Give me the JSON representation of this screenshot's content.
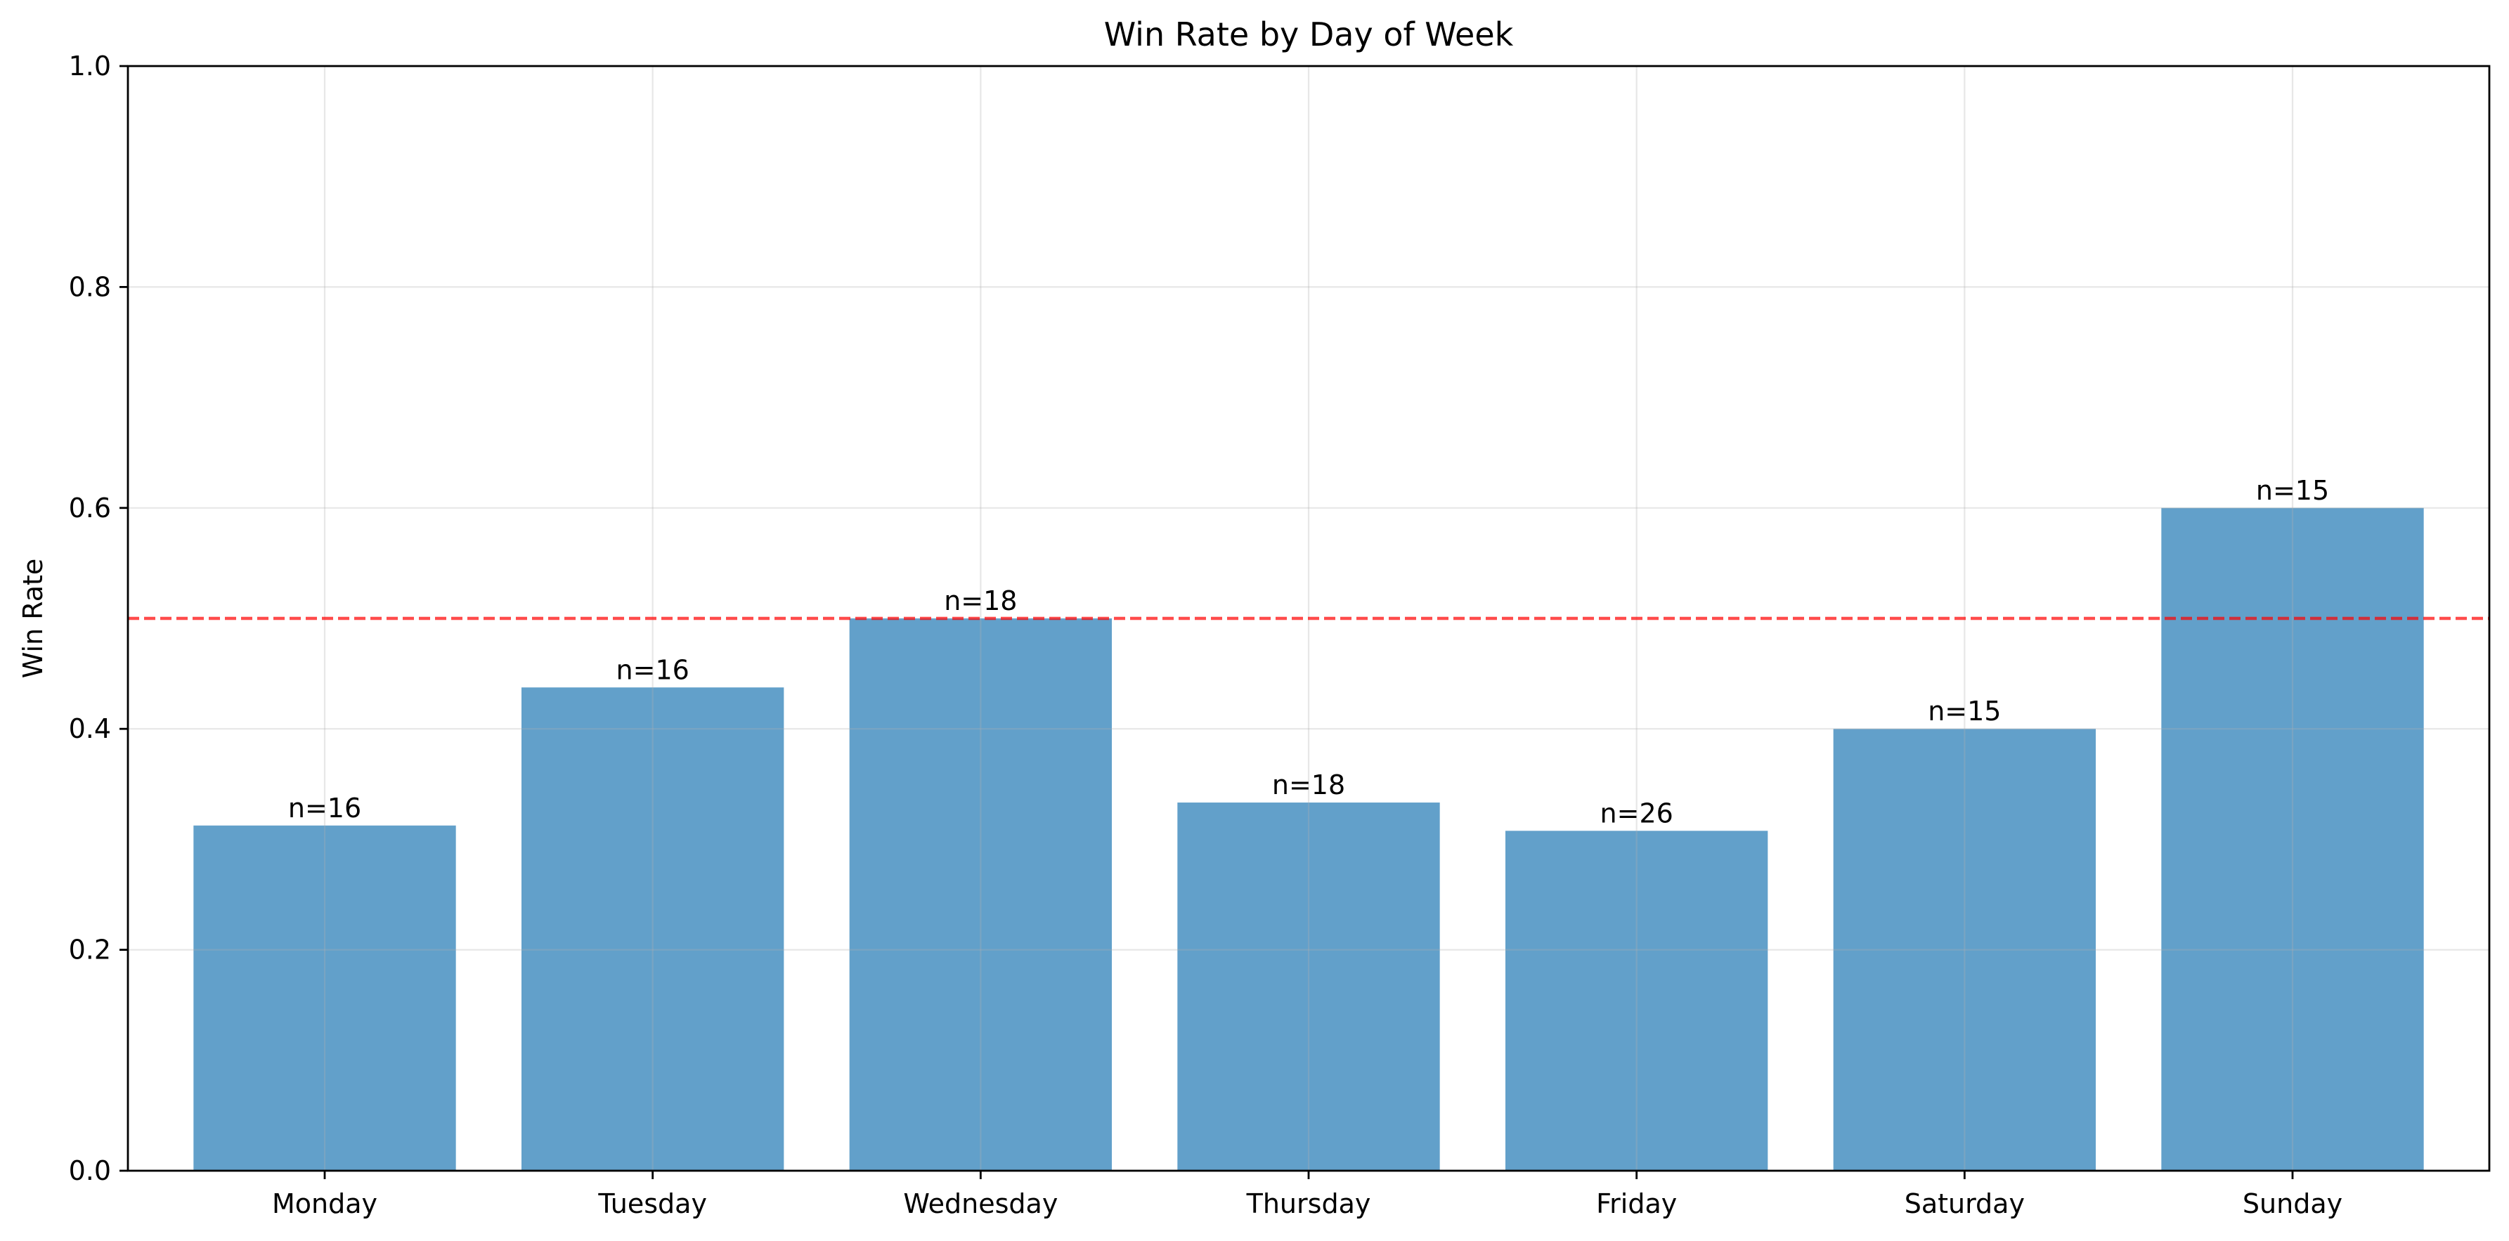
{
  "chart_data": {
    "type": "bar",
    "title": "Win Rate by Day of Week",
    "xlabel": "",
    "ylabel": "Win Rate",
    "categories": [
      "Monday",
      "Tuesday",
      "Wednesday",
      "Thursday",
      "Friday",
      "Saturday",
      "Sunday"
    ],
    "values": [
      0.3125,
      0.4375,
      0.5,
      0.3333,
      0.3077,
      0.4,
      0.6
    ],
    "data_labels": [
      "n=16",
      "n=16",
      "n=18",
      "n=18",
      "n=26",
      "n=15",
      "n=15"
    ],
    "ylim": [
      0,
      1.0
    ],
    "yticks": [
      "0.0",
      "0.2",
      "0.4",
      "0.6",
      "0.8",
      "1.0"
    ],
    "ytick_values": [
      0,
      0.2,
      0.4,
      0.6,
      0.8,
      1.0
    ],
    "reference_line": {
      "y": 0.5,
      "style": "dashed",
      "color": "#ff0000"
    },
    "grid": true,
    "bar_color": "#1f77b4",
    "bar_opacity": 0.7
  }
}
